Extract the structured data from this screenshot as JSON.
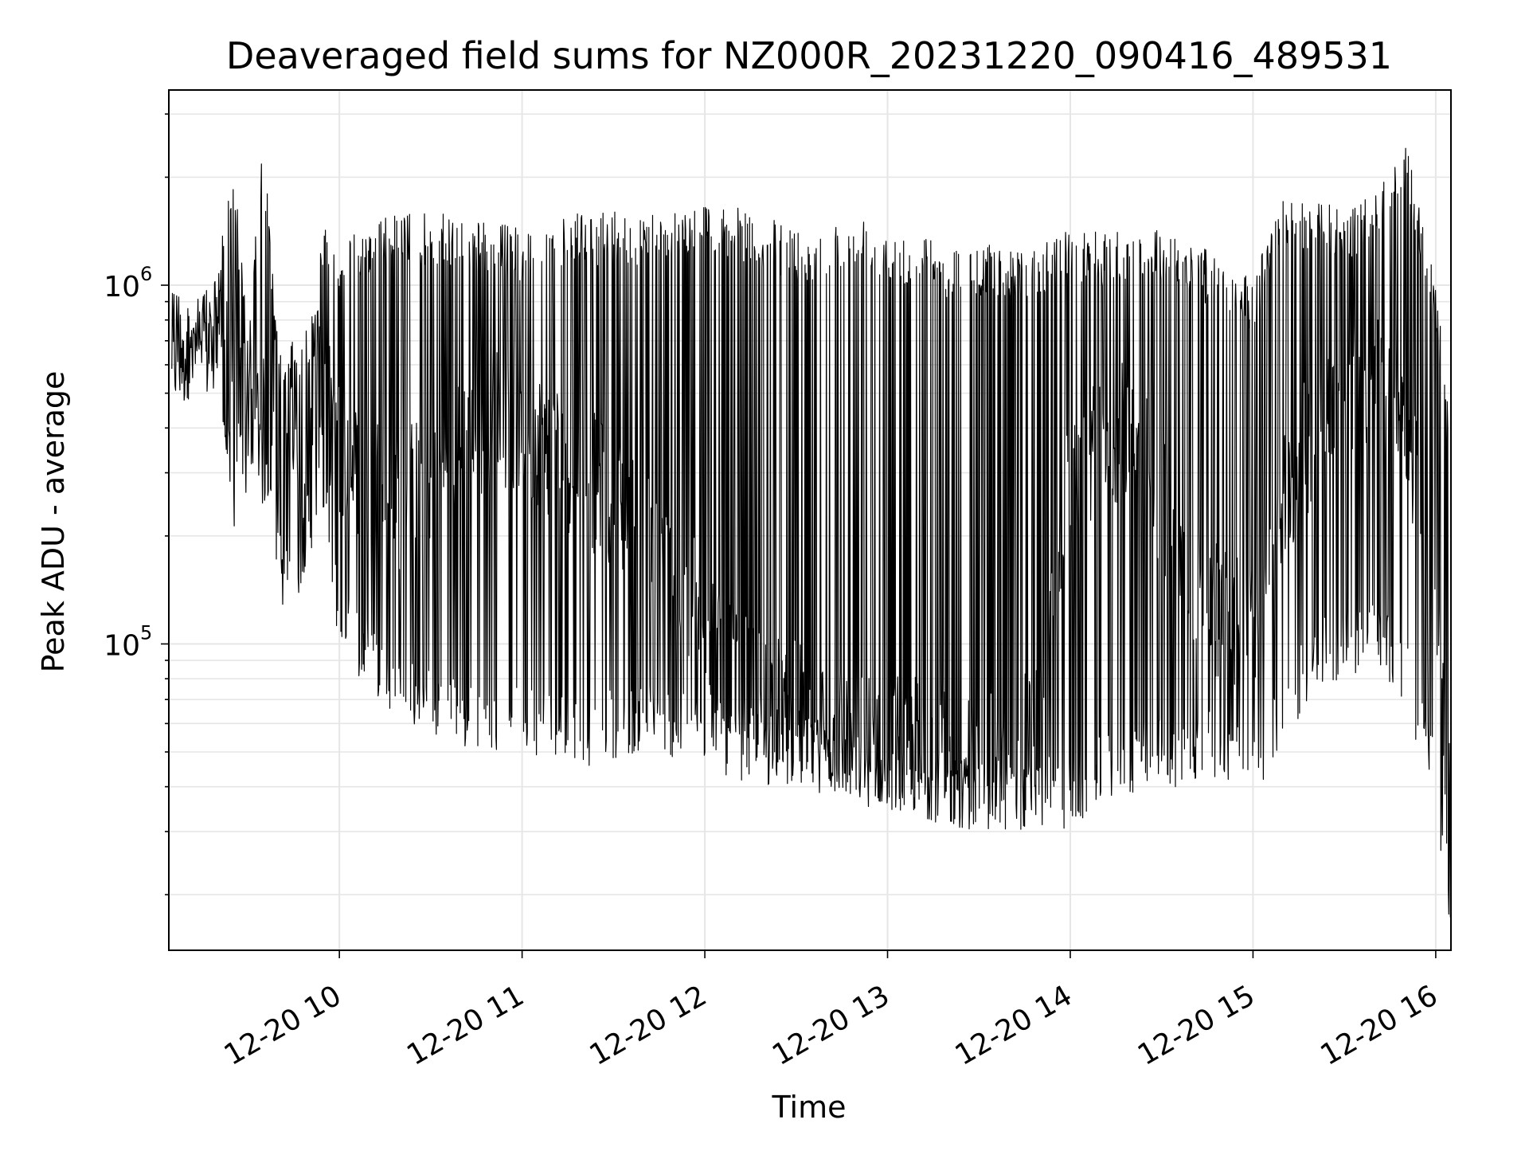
{
  "chart_data": {
    "type": "line",
    "title": "Deaveraged field sums for NZ000R_20231220_090416_489531",
    "xlabel": "Time",
    "ylabel": "Peak ADU - average",
    "y_scale": "log",
    "grid": true,
    "legend": "none",
    "line_color": "#000000",
    "grid_color": "#e6e6e6",
    "xlim": [
      "2023-12-20 09:04",
      "2023-12-20 16:05"
    ],
    "ylim": [
      14000,
      3500000
    ],
    "x_ticks": [
      {
        "value": "2023-12-20 10:00",
        "label": "12-20 10"
      },
      {
        "value": "2023-12-20 11:00",
        "label": "12-20 11"
      },
      {
        "value": "2023-12-20 12:00",
        "label": "12-20 12"
      },
      {
        "value": "2023-12-20 13:00",
        "label": "12-20 13"
      },
      {
        "value": "2023-12-20 14:00",
        "label": "12-20 14"
      },
      {
        "value": "2023-12-20 15:00",
        "label": "12-20 15"
      },
      {
        "value": "2023-12-20 16:00",
        "label": "12-20 16"
      }
    ],
    "y_ticks": [
      {
        "value": 100000,
        "base": "10",
        "exp": "5"
      },
      {
        "value": 1000000,
        "base": "10",
        "exp": "6"
      }
    ],
    "series": [
      {
        "x": [
          "2023-12-20 09:05",
          "2023-12-20 09:10",
          "2023-12-20 09:15",
          "2023-12-20 09:20",
          "2023-12-20 09:25",
          "2023-12-20 09:30",
          "2023-12-20 09:35",
          "2023-12-20 09:40",
          "2023-12-20 09:45",
          "2023-12-20 09:50",
          "2023-12-20 09:55",
          "2023-12-20 10:00",
          "2023-12-20 10:10",
          "2023-12-20 10:20",
          "2023-12-20 10:30",
          "2023-12-20 10:40",
          "2023-12-20 10:50",
          "2023-12-20 11:00",
          "2023-12-20 11:10",
          "2023-12-20 11:20",
          "2023-12-20 11:30",
          "2023-12-20 11:40",
          "2023-12-20 11:50",
          "2023-12-20 12:00",
          "2023-12-20 12:10",
          "2023-12-20 12:20",
          "2023-12-20 12:30",
          "2023-12-20 12:40",
          "2023-12-20 12:50",
          "2023-12-20 13:00",
          "2023-12-20 13:10",
          "2023-12-20 13:20",
          "2023-12-20 13:30",
          "2023-12-20 13:40",
          "2023-12-20 13:50",
          "2023-12-20 14:00",
          "2023-12-20 14:10",
          "2023-12-20 14:20",
          "2023-12-20 14:30",
          "2023-12-20 14:40",
          "2023-12-20 14:50",
          "2023-12-20 15:00",
          "2023-12-20 15:10",
          "2023-12-20 15:20",
          "2023-12-20 15:30",
          "2023-12-20 15:40",
          "2023-12-20 15:50",
          "2023-12-20 16:00",
          "2023-12-20 16:05"
        ],
        "upper": [
          950000,
          900000,
          920000,
          1100000,
          2500000,
          700000,
          2700000,
          650000,
          700000,
          800000,
          1500000,
          1300000,
          1500000,
          1600000,
          1600000,
          1550000,
          1500000,
          1450000,
          1500000,
          1600000,
          1600000,
          1600000,
          1650000,
          1700000,
          1650000,
          1550000,
          1450000,
          1450000,
          1600000,
          1450000,
          1400000,
          1300000,
          1300000,
          1300000,
          1300000,
          1450000,
          1400000,
          1450000,
          1450000,
          1350000,
          1150000,
          1050000,
          1800000,
          1700000,
          1650000,
          1800000,
          2500000,
          1050000,
          380000
        ],
        "lower": [
          450000,
          480000,
          500000,
          520000,
          200000,
          260000,
          240000,
          130000,
          120000,
          180000,
          200000,
          90000,
          75000,
          60000,
          55000,
          50000,
          50000,
          50000,
          48000,
          45000,
          48000,
          50000,
          48000,
          45000,
          42000,
          40000,
          40000,
          38000,
          36000,
          33000,
          33000,
          31000,
          30000,
          30000,
          31000,
          30000,
          35000,
          38000,
          40000,
          40000,
          42000,
          35000,
          50000,
          75000,
          80000,
          85000,
          68000,
          32000,
          16000
        ],
        "level": [
          700000,
          680000,
          650000,
          700000,
          550000,
          450000,
          400000,
          380000,
          400000,
          450000,
          500000,
          350000,
          300000,
          250000,
          300000,
          350000,
          450000,
          400000,
          350000,
          300000,
          250000,
          200000,
          150000,
          120000,
          80000,
          70000,
          65000,
          60000,
          55000,
          55000,
          52000,
          50000,
          45000,
          48000,
          60000,
          300000,
          350000,
          400000,
          250000,
          150000,
          120000,
          110000,
          250000,
          400000,
          500000,
          550000,
          450000,
          120000,
          30000
        ]
      }
    ]
  }
}
